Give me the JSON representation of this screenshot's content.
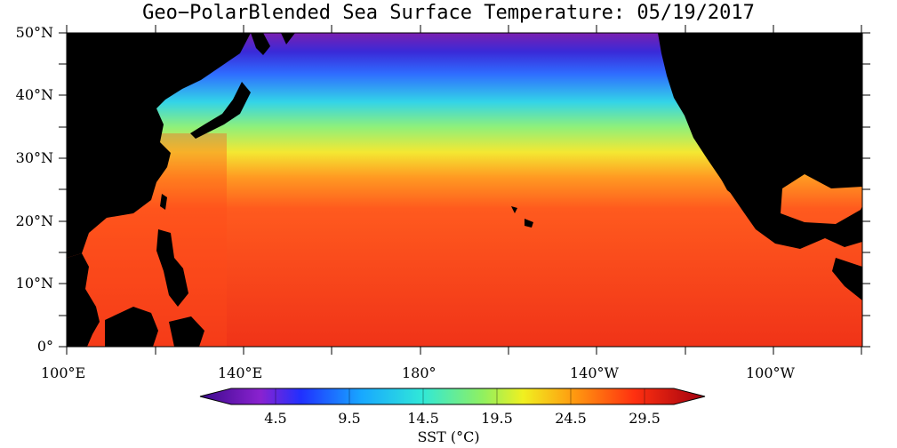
{
  "title": "Geo−PolarBlended Sea Surface Temperature: 05/19/2017",
  "lat_labels": [
    "50°N",
    "40°N",
    "30°N",
    "20°N",
    "10°N",
    "0°"
  ],
  "lon_labels": [
    "100°E",
    "140°E",
    "180°",
    "140°W",
    "100°W"
  ],
  "colorbar": {
    "ticks": [
      "4.5",
      "9.5",
      "14.5",
      "19.5",
      "24.5",
      "29.5"
    ],
    "title": "SST (°C)"
  },
  "colors": {
    "land": "#000000",
    "cold": "#5a0d9e",
    "cool": "#1e5cff",
    "mild": "#3ff0d6",
    "warm": "#f2f230",
    "hot": "#ff3a1e",
    "hottest": "#8a0000"
  }
}
